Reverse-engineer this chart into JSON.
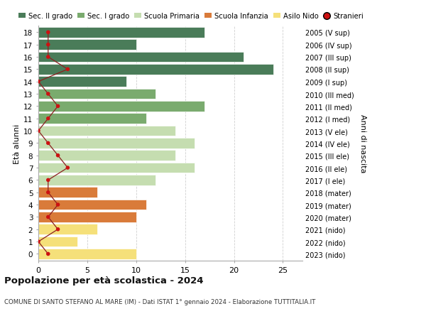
{
  "ages": [
    18,
    17,
    16,
    15,
    14,
    13,
    12,
    11,
    10,
    9,
    8,
    7,
    6,
    5,
    4,
    3,
    2,
    1,
    0
  ],
  "bar_values": [
    17,
    10,
    21,
    24,
    9,
    12,
    17,
    11,
    14,
    16,
    14,
    16,
    12,
    6,
    11,
    10,
    6,
    4,
    10
  ],
  "bar_colors": [
    "#4a7c59",
    "#4a7c59",
    "#4a7c59",
    "#4a7c59",
    "#4a7c59",
    "#7aab6e",
    "#7aab6e",
    "#7aab6e",
    "#c5ddb0",
    "#c5ddb0",
    "#c5ddb0",
    "#c5ddb0",
    "#c5ddb0",
    "#d97b3a",
    "#d97b3a",
    "#d97b3a",
    "#f5e07a",
    "#f5e07a",
    "#f5e07a"
  ],
  "stranieri": [
    1,
    1,
    1,
    3,
    0,
    1,
    2,
    1,
    0,
    1,
    2,
    3,
    1,
    1,
    2,
    1,
    2,
    0,
    1
  ],
  "right_labels": [
    "2005 (V sup)",
    "2006 (IV sup)",
    "2007 (III sup)",
    "2008 (II sup)",
    "2009 (I sup)",
    "2010 (III med)",
    "2011 (II med)",
    "2012 (I med)",
    "2013 (V ele)",
    "2014 (IV ele)",
    "2015 (III ele)",
    "2016 (II ele)",
    "2017 (I ele)",
    "2018 (mater)",
    "2019 (mater)",
    "2020 (mater)",
    "2021 (nido)",
    "2022 (nido)",
    "2023 (nido)"
  ],
  "legend_labels": [
    "Sec. II grado",
    "Sec. I grado",
    "Scuola Primaria",
    "Scuola Infanzia",
    "Asilo Nido",
    "Stranieri"
  ],
  "legend_colors": [
    "#4a7c59",
    "#7aab6e",
    "#c5ddb0",
    "#d97b3a",
    "#f5e07a",
    "#cc1111"
  ],
  "ylabel": "Età alunni",
  "right_ylabel": "Anni di nascita",
  "title": "Popolazione per età scolastica - 2024",
  "subtitle": "COMUNE DI SANTO STEFANO AL MARE (IM) - Dati ISTAT 1° gennaio 2024 - Elaborazione TUTTITALIA.IT",
  "xlim": [
    0,
    27
  ],
  "background_color": "#ffffff",
  "bar_edge_color": "#ffffff",
  "stranieri_color": "#cc1111",
  "stranieri_line_color": "#8b2020",
  "grid_color": "#d0d0d0"
}
